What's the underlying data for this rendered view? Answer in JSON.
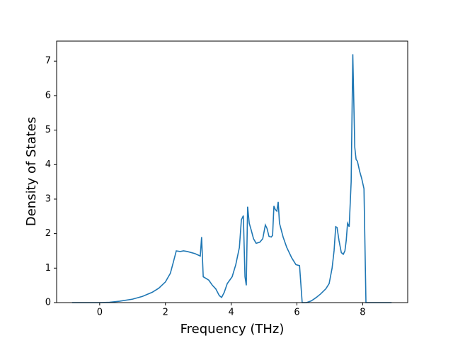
{
  "chart_data": {
    "type": "line",
    "xlabel": "Frequency (THz)",
    "ylabel": "Density of States",
    "xlim": [
      -1.31,
      9.37
    ],
    "ylim": [
      0,
      7.58
    ],
    "xticks": [
      0,
      2,
      4,
      6,
      8
    ],
    "yticks": [
      0,
      1,
      2,
      3,
      4,
      5,
      6,
      7
    ],
    "series": [
      {
        "color": "#1f77b4",
        "x": [
          -0.84,
          0,
          0.3,
          0.6,
          1.0,
          1.3,
          1.6,
          1.8,
          2.0,
          2.15,
          2.24,
          2.33,
          2.45,
          2.55,
          2.67,
          2.9,
          3.06,
          3.1,
          3.15,
          3.32,
          3.43,
          3.53,
          3.64,
          3.71,
          3.79,
          3.88,
          4.03,
          4.14,
          4.25,
          4.31,
          4.37,
          4.42,
          4.46,
          4.5,
          4.55,
          4.61,
          4.68,
          4.76,
          4.87,
          4.96,
          5.04,
          5.09,
          5.15,
          5.22,
          5.26,
          5.3,
          5.34,
          5.39,
          5.43,
          5.47,
          5.58,
          5.69,
          5.84,
          5.97,
          6.08,
          6.16,
          6.29,
          6.44,
          6.59,
          6.72,
          6.88,
          6.98,
          7.07,
          7.13,
          7.18,
          7.22,
          7.28,
          7.35,
          7.41,
          7.46,
          7.5,
          7.54,
          7.59,
          7.65,
          7.7,
          7.76,
          7.8,
          7.84,
          7.91,
          7.97,
          8.04,
          8.1,
          8.88
        ],
        "values": [
          0,
          0,
          0.01,
          0.04,
          0.1,
          0.18,
          0.3,
          0.42,
          0.6,
          0.85,
          1.17,
          1.5,
          1.48,
          1.5,
          1.48,
          1.42,
          1.35,
          1.9,
          0.75,
          0.65,
          0.5,
          0.4,
          0.2,
          0.15,
          0.3,
          0.55,
          0.75,
          1.1,
          1.6,
          2.4,
          2.52,
          0.75,
          0.5,
          2.78,
          2.3,
          2.1,
          1.85,
          1.72,
          1.75,
          1.85,
          2.25,
          2.15,
          1.92,
          1.9,
          1.95,
          2.8,
          2.7,
          2.65,
          2.92,
          2.3,
          1.9,
          1.6,
          1.3,
          1.1,
          1.07,
          0,
          0,
          0.05,
          0.15,
          0.25,
          0.4,
          0.55,
          1.0,
          1.5,
          2.2,
          2.18,
          1.8,
          1.45,
          1.4,
          1.5,
          1.8,
          2.3,
          2.2,
          3.5,
          7.2,
          4.5,
          4.15,
          4.1,
          3.8,
          3.6,
          3.3,
          0,
          0
        ]
      }
    ]
  }
}
